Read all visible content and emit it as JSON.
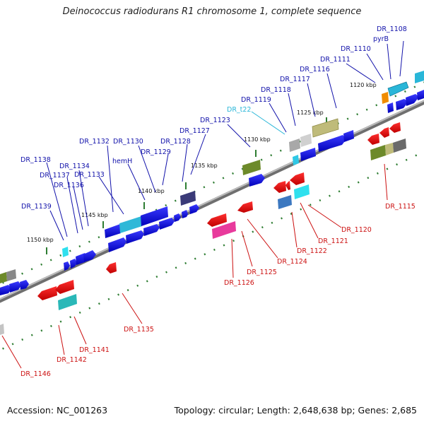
{
  "title": "Deinococcus radiodurans R1 chromosome 1, complete sequence",
  "footer": {
    "accession": "Accession: NC_001263",
    "summary": "Topology: circular; Length: 2,648,638 bp; Genes: 2,685"
  },
  "colors": {
    "forward_label": "#1111aa",
    "reverse_label": "#cc1111",
    "rna_label": "#29b6d8",
    "backbone": "#8a8a8a",
    "tick": "#2e7d32"
  },
  "kbp_markers": [
    "1120 kbp",
    "1125 kbp",
    "1130 kbp",
    "1135 kbp",
    "1140 kbp",
    "1145 kbp",
    "1150 kbp"
  ],
  "forward_labels": [
    "DR_1108",
    "pyrB",
    "DR_1110",
    "DR_1111",
    "DR_1116",
    "DR_1117",
    "DR_1118",
    "DR_1119",
    "DR_t22",
    "DR_1123",
    "DR_1127",
    "DR_1128",
    "DR_1129",
    "DR_1130",
    "hemH",
    "DR_1132",
    "DR_1133",
    "DR_1134",
    "DR_1136",
    "DR_1137",
    "DR_1138",
    "DR_1139"
  ],
  "reverse_labels": [
    "DR_1115",
    "DR_1120",
    "DR_1121",
    "DR_1122",
    "DR_1124",
    "DR_1125",
    "DR_1126",
    "DR_1135",
    "DR_1141",
    "DR_1142",
    "DR_1146"
  ]
}
